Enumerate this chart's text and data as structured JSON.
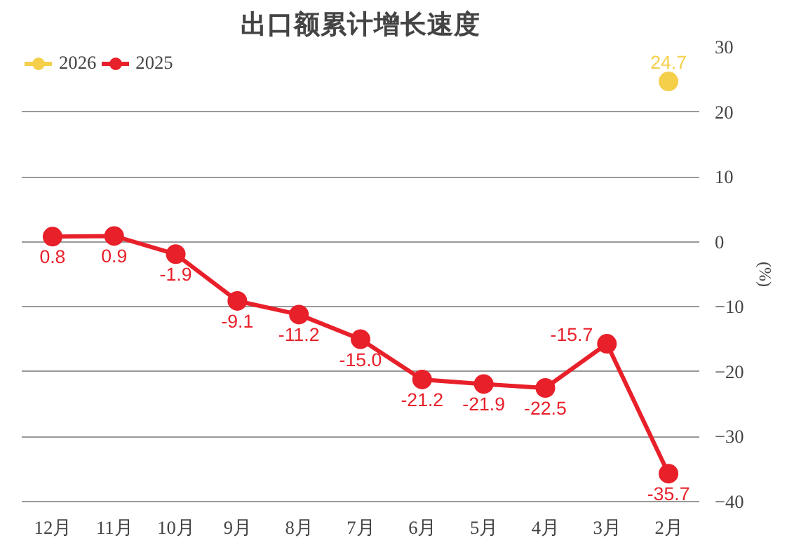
{
  "chart_data": {
    "type": "line",
    "title": "出口额累计增长速度",
    "ylabel": "(%)",
    "categories": [
      "12月",
      "11月",
      "10月",
      "9月",
      "8月",
      "7月",
      "6月",
      "5月",
      "4月",
      "3月",
      "2月"
    ],
    "series": [
      {
        "name": "2026",
        "color": "#f5cf4a",
        "values": [
          null,
          null,
          null,
          null,
          null,
          null,
          null,
          null,
          null,
          null,
          24.7
        ],
        "value_labels": [
          null,
          null,
          null,
          null,
          null,
          null,
          null,
          null,
          null,
          null,
          "24.7"
        ]
      },
      {
        "name": "2025",
        "color": "#e8202a",
        "values": [
          0.8,
          0.9,
          -1.9,
          -9.1,
          -11.2,
          -15.0,
          -21.2,
          -21.9,
          -22.5,
          -15.7,
          -35.7
        ],
        "value_labels": [
          "0.8",
          "0.9",
          "-1.9",
          "-9.1",
          "-11.2",
          "-15.0",
          "-21.2",
          "-21.9",
          "-22.5",
          "-15.7",
          "-35.7"
        ]
      }
    ],
    "ylim": [
      -40,
      30
    ],
    "yticks": [
      -40,
      -30,
      -20,
      -10,
      0,
      10,
      20,
      30
    ],
    "grid": "y",
    "legend": "top left",
    "marker": "circle",
    "line_style": "solid"
  }
}
